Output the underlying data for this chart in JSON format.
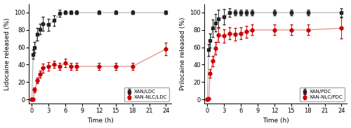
{
  "left": {
    "ylabel": "Lidocaine released (%)",
    "xlabel": "Time (h)",
    "series1": {
      "label": "XAN/LDC",
      "line_color": "#aaaaaa",
      "marker_color": "#222222",
      "x": [
        0,
        0.25,
        0.5,
        1,
        1.5,
        2,
        3,
        4,
        5,
        6,
        7,
        8,
        12,
        15,
        18,
        24
      ],
      "y": [
        0,
        52,
        60,
        75,
        81,
        87,
        86,
        91,
        99,
        100,
        100,
        100,
        100,
        100,
        100,
        100
      ],
      "yerr": [
        0,
        5,
        6,
        7,
        6,
        8,
        7,
        6,
        4,
        2,
        2,
        2,
        2,
        2,
        2,
        2
      ]
    },
    "series2": {
      "label": "XAN-NLC/LDC",
      "line_color": "#e08080",
      "marker_color": "#cc0000",
      "x": [
        0,
        0.25,
        0.5,
        1,
        1.5,
        2,
        3,
        4,
        5,
        6,
        7,
        8,
        12,
        15,
        18,
        24
      ],
      "y": [
        0,
        0.5,
        11,
        22,
        29,
        36,
        38,
        40,
        38,
        42,
        38,
        38,
        38,
        38,
        38,
        58
      ],
      "yerr": [
        0,
        1,
        3,
        3,
        4,
        5,
        5,
        4,
        4,
        5,
        4,
        4,
        4,
        4,
        4,
        7
      ]
    },
    "xlim": [
      -0.5,
      25
    ],
    "ylim": [
      -5,
      110
    ],
    "xticks": [
      0,
      3,
      6,
      9,
      12,
      15,
      18,
      21,
      24
    ],
    "yticks": [
      0,
      20,
      40,
      60,
      80,
      100
    ]
  },
  "right": {
    "ylabel": "Prilocaine released (%)",
    "xlabel": "Time (h)",
    "series1": {
      "label": "XAN/PDC",
      "line_color": "#aaaaaa",
      "marker_color": "#222222",
      "x": [
        0,
        0.25,
        0.5,
        1,
        1.5,
        2,
        3,
        4,
        5,
        6,
        7,
        8,
        12,
        15,
        18,
        24
      ],
      "y": [
        0,
        57,
        68,
        82,
        88,
        93,
        95,
        100,
        100,
        100,
        100,
        100,
        100,
        100,
        100,
        100
      ],
      "yerr": [
        0,
        7,
        8,
        10,
        10,
        10,
        9,
        5,
        3,
        3,
        3,
        3,
        3,
        3,
        3,
        5
      ]
    },
    "series2": {
      "label": "XAN-NLC/PDC",
      "line_color": "#e08080",
      "marker_color": "#cc0000",
      "x": [
        0,
        0.25,
        0.5,
        1,
        1.5,
        2,
        3,
        4,
        5,
        6,
        7,
        8,
        12,
        15,
        18,
        24
      ],
      "y": [
        0,
        1,
        30,
        44,
        59,
        74,
        73,
        76,
        75,
        76,
        78,
        80,
        80,
        80,
        80,
        82
      ],
      "yerr": [
        0,
        1,
        5,
        6,
        7,
        8,
        8,
        7,
        7,
        7,
        7,
        6,
        6,
        6,
        6,
        12
      ]
    },
    "xlim": [
      -0.5,
      25
    ],
    "ylim": [
      -5,
      110
    ],
    "xticks": [
      0,
      3,
      6,
      9,
      12,
      15,
      18,
      21,
      24
    ],
    "yticks": [
      0,
      20,
      40,
      60,
      80,
      100
    ]
  },
  "marker_size": 3.5,
  "capsize": 1.5,
  "elinewidth": 0.7,
  "linewidth": 0.8,
  "tick_fontsize": 6,
  "label_fontsize": 6.5,
  "legend_fontsize": 5.0
}
